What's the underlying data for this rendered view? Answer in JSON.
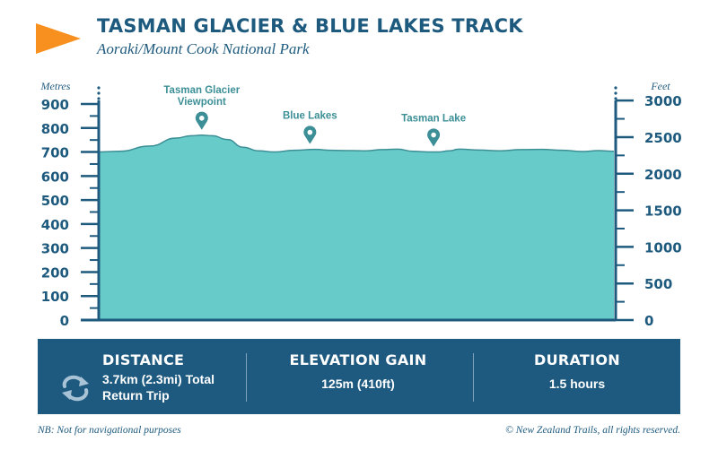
{
  "header": {
    "title": "TASMAN GLACIER & BLUE LAKES TRACK",
    "subtitle": "Aoraki/Mount Cook National Park"
  },
  "colors": {
    "primary": "#1d5a7e",
    "profile_fill": "#67cbc9",
    "profile_line": "#3c8f96",
    "accent": "#f7901e",
    "panel": "#1e5a80",
    "marker": "#3c8f96"
  },
  "chart_data": {
    "type": "area",
    "title": "TASMAN GLACIER & BLUE LAKES TRACK",
    "subtitle": "Aoraki/Mount Cook National Park",
    "ylabel": "Metres",
    "ylabel_right": "Feet",
    "ylim": [
      0,
      900
    ],
    "yticks": [
      "900",
      "800",
      "700",
      "600",
      "500",
      "400",
      "300",
      "200",
      "100",
      "0"
    ],
    "ylim_right": [
      0,
      3000
    ],
    "yticks_right": [
      "3000",
      "2500",
      "2000",
      "1500",
      "1000",
      "500",
      "0"
    ],
    "xlim": [
      0,
      1
    ],
    "grid": false,
    "profile": {
      "x": [
        0,
        0.04,
        0.1,
        0.15,
        0.18,
        0.2,
        0.22,
        0.25,
        0.28,
        0.31,
        0.34,
        0.38,
        0.42,
        0.45,
        0.49,
        0.52,
        0.55,
        0.58,
        0.61,
        0.64,
        0.66,
        0.68,
        0.7,
        0.74,
        0.78,
        0.82,
        0.86,
        0.9,
        0.94,
        0.97,
        1.0
      ],
      "y": [
        700,
        703,
        725,
        758,
        768,
        770,
        768,
        752,
        720,
        705,
        700,
        707,
        711,
        707,
        706,
        705,
        710,
        712,
        703,
        700,
        700,
        705,
        712,
        708,
        705,
        710,
        711,
        707,
        702,
        706,
        703
      ]
    },
    "markers": [
      {
        "label": "Tasman Glacier Viewpoint",
        "x": 0.2,
        "elevation": 770
      },
      {
        "label": "Blue Lakes",
        "x": 0.41,
        "elevation": 711
      },
      {
        "label": "Tasman Lake",
        "x": 0.65,
        "elevation": 700
      }
    ]
  },
  "stats": {
    "distance": {
      "label": "DISTANCE",
      "value_line1": "3.7km (2.3mi) Total",
      "value_line2": "Return Trip"
    },
    "elevation_gain": {
      "label": "ELEVATION GAIN",
      "value": "125m (410ft)"
    },
    "duration": {
      "label": "DURATION",
      "value": "1.5 hours"
    }
  },
  "footer": {
    "note": "NB: Not for navigational purposes",
    "copyright": "© New Zealand Trails, all rights reserved."
  }
}
